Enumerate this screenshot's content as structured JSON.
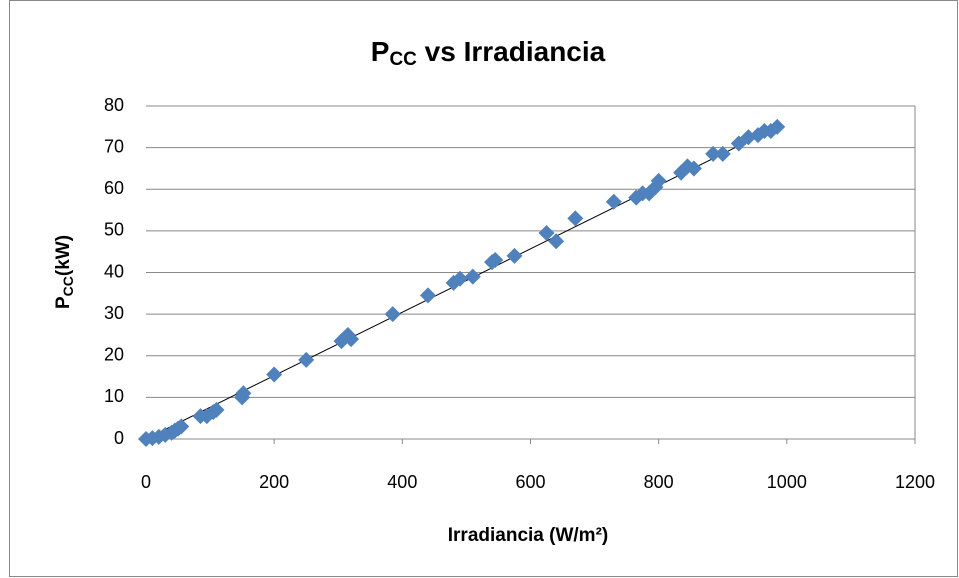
{
  "chart_data": {
    "type": "scatter",
    "title": [
      "P",
      "CC",
      " vs Irradiancia"
    ],
    "x_label": "Irradiancia (W/m²)",
    "y_label": [
      "P",
      "CC",
      "(kW)"
    ],
    "xlim": [
      0,
      1200
    ],
    "xticks": [
      0,
      200,
      400,
      600,
      800,
      1000,
      1200
    ],
    "ylim": [
      0,
      80
    ],
    "yticks": [
      0,
      10,
      20,
      30,
      40,
      50,
      60,
      70,
      80
    ],
    "grid": true,
    "color": "#4f81bd",
    "x": [
      0,
      10,
      20,
      30,
      40,
      45,
      50,
      55,
      85,
      95,
      105,
      110,
      150,
      152,
      200,
      250,
      305,
      315,
      320,
      385,
      440,
      480,
      490,
      510,
      540,
      545,
      575,
      625,
      640,
      670,
      730,
      765,
      775,
      785,
      795,
      800,
      835,
      845,
      855,
      885,
      900,
      925,
      940,
      955,
      965,
      975,
      985
    ],
    "values": [
      0,
      0.2,
      0.5,
      1,
      1.5,
      2,
      2.5,
      3,
      5.5,
      5.5,
      6.5,
      7,
      10,
      11,
      15.5,
      19,
      23.5,
      25,
      24,
      30,
      34.5,
      37.5,
      38.5,
      39,
      42.5,
      43,
      44,
      49.5,
      47.5,
      53,
      57,
      58,
      59,
      59,
      60.5,
      62,
      64,
      65.5,
      65,
      68.5,
      68.5,
      71,
      72.5,
      73,
      74,
      74,
      75
    ],
    "trendline": {
      "x": [
        0,
        985
      ],
      "y": [
        0,
        75
      ],
      "color": "#000000"
    }
  }
}
